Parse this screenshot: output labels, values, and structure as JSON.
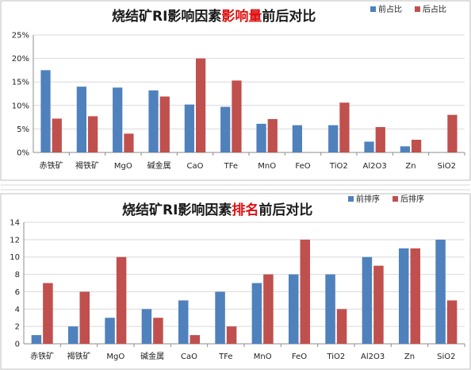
{
  "colors": {
    "front": "#4f81bd",
    "back": "#c0504d"
  },
  "chart_data": [
    {
      "type": "bar",
      "title": {
        "prefix": "烧结矿RI影响因素",
        "highlight": "影响量",
        "suffix": "前后对比"
      },
      "categories": [
        "赤铁矿",
        "褐铁矿",
        "MgO",
        "碱金属",
        "CaO",
        "TFe",
        "MnO",
        "FeO",
        "TiO2",
        "Al2O3",
        "Zn",
        "SiO2"
      ],
      "series": [
        {
          "name": "前占比",
          "values": [
            17.5,
            14.0,
            13.8,
            13.2,
            10.2,
            9.7,
            6.1,
            5.8,
            5.8,
            2.3,
            1.3,
            0
          ]
        },
        {
          "name": "后占比",
          "values": [
            7.2,
            7.7,
            4.0,
            11.9,
            20.0,
            15.3,
            7.1,
            0,
            10.6,
            5.4,
            2.7,
            8.0
          ]
        }
      ],
      "ylim": [
        0,
        25
      ],
      "yticks": [
        0,
        5,
        10,
        15,
        20,
        25
      ],
      "ytick_labels": [
        "0%",
        "5%",
        "10%",
        "15%",
        "20%",
        "25%"
      ],
      "grid": true,
      "legend": "top-right"
    },
    {
      "type": "bar",
      "title": {
        "prefix": "烧结矿RI影响因素",
        "highlight": "排名",
        "suffix": "前后对比"
      },
      "categories": [
        "赤铁矿",
        "褐铁矿",
        "MgO",
        "碱金属",
        "CaO",
        "TFe",
        "MnO",
        "FeO",
        "TiO2",
        "Al2O3",
        "Zn",
        "SiO2"
      ],
      "series": [
        {
          "name": "前排序",
          "values": [
            1,
            2,
            3,
            4,
            5,
            6,
            7,
            8,
            8,
            10,
            11,
            12
          ]
        },
        {
          "name": "后排序",
          "values": [
            7,
            6,
            10,
            3,
            1,
            2,
            8,
            12,
            4,
            9,
            11,
            5
          ]
        }
      ],
      "ylim": [
        0,
        14
      ],
      "yticks": [
        0,
        2,
        4,
        6,
        8,
        10,
        12,
        14
      ],
      "ytick_labels": [
        "0",
        "2",
        "4",
        "6",
        "8",
        "10",
        "12",
        "14"
      ],
      "grid": true,
      "legend": "top-right"
    }
  ]
}
